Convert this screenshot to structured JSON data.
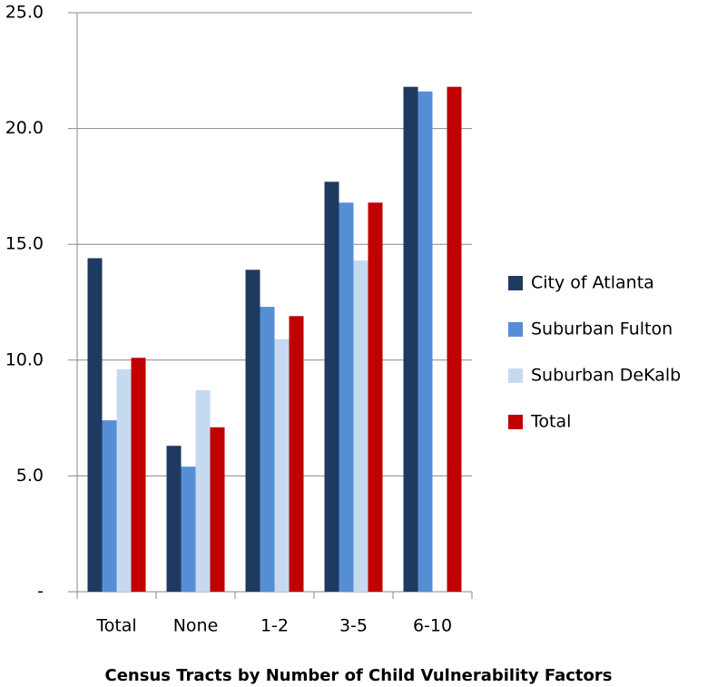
{
  "chart_data": {
    "type": "bar",
    "xlabel": "Census Tracts by Number of Child Vulnerability Factors",
    "categories": [
      "Total",
      "None",
      "1-2",
      "3-5",
      "6-10"
    ],
    "series": [
      {
        "name": "City of Atlanta",
        "color": "#1f3a60",
        "values": [
          14.4,
          6.3,
          13.9,
          17.7,
          21.8
        ]
      },
      {
        "name": "Suburban Fulton",
        "color": "#558ed5",
        "values": [
          7.4,
          5.4,
          12.3,
          16.8,
          21.6
        ]
      },
      {
        "name": "Suburban DeKalb",
        "color": "#c6d9f1",
        "values": [
          9.6,
          8.7,
          10.9,
          14.3,
          null
        ]
      },
      {
        "name": "Total",
        "color": "#c00000",
        "values": [
          10.1,
          7.1,
          11.9,
          16.8,
          21.8
        ]
      }
    ],
    "ylim": [
      0,
      25
    ],
    "yticks": [
      {
        "value": 0,
        "label": "-"
      },
      {
        "value": 5,
        "label": "5.0"
      },
      {
        "value": 10,
        "label": "10.0"
      },
      {
        "value": 15,
        "label": "15.0"
      },
      {
        "value": 20,
        "label": "20.0"
      },
      {
        "value": 25,
        "label": "25.0"
      }
    ],
    "grid": true,
    "legend": "right"
  }
}
